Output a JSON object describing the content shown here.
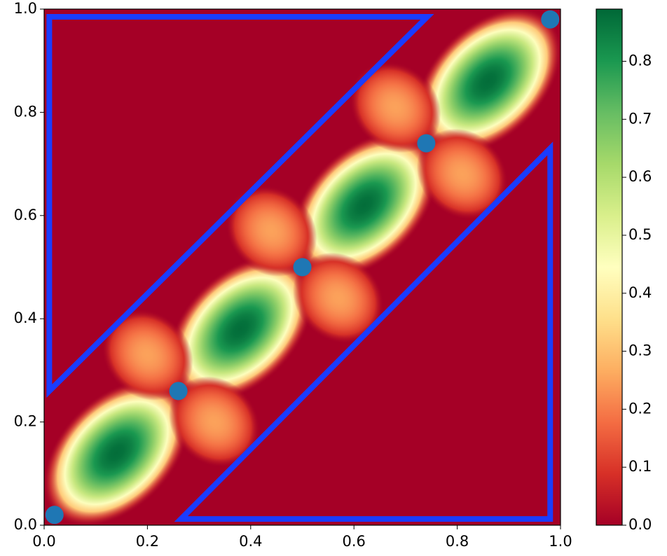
{
  "chart_data": {
    "type": "heatmap",
    "colormap": "RdYlGn",
    "background_value": 0,
    "xlim": [
      0,
      1
    ],
    "ylim": [
      0,
      1
    ],
    "xticks": [
      {
        "value": 0,
        "label": "0.0"
      },
      0.2,
      0.4,
      0.6,
      0.8,
      {
        "value": 1,
        "label": "1.0"
      }
    ],
    "yticks": [
      {
        "value": 0,
        "label": "0.0"
      },
      0.2,
      0.4,
      0.6,
      0.8,
      {
        "value": 1,
        "label": "1.0"
      }
    ],
    "clim": [
      0,
      0.89
    ],
    "cticks": [
      {
        "value": 0,
        "label": "0.0"
      },
      0.1,
      0.2,
      0.3,
      0.4,
      0.5,
      0.6,
      0.7,
      0.8
    ],
    "blobs": [
      {
        "x": 0.14,
        "y": 0.14,
        "value": 0.88
      },
      {
        "x": 0.38,
        "y": 0.38,
        "value": 0.88
      },
      {
        "x": 0.62,
        "y": 0.62,
        "value": 0.88
      },
      {
        "x": 0.86,
        "y": 0.86,
        "value": 0.88
      },
      {
        "x": 0.2,
        "y": 0.33,
        "value": 0.25
      },
      {
        "x": 0.33,
        "y": 0.2,
        "value": 0.25
      },
      {
        "x": 0.44,
        "y": 0.57,
        "value": 0.25
      },
      {
        "x": 0.57,
        "y": 0.44,
        "value": 0.25
      },
      {
        "x": 0.68,
        "y": 0.81,
        "value": 0.25
      },
      {
        "x": 0.81,
        "y": 0.68,
        "value": 0.25
      }
    ],
    "polygons": [
      {
        "color": "#1a3cff",
        "x": [
          0.01,
          0.01,
          0.742,
          0.01
        ],
        "y": [
          0.26,
          0.985,
          0.985,
          0.26
        ]
      },
      {
        "color": "#1a3cff",
        "x": [
          0.265,
          0.98,
          0.98,
          0.265
        ],
        "y": [
          0.012,
          0.012,
          0.73,
          0.012
        ]
      }
    ],
    "points": {
      "color": "#1f77b4",
      "x": [
        0.02,
        0.26,
        0.5,
        0.74,
        0.98
      ],
      "y": [
        0.02,
        0.26,
        0.5,
        0.74,
        0.98
      ]
    }
  }
}
